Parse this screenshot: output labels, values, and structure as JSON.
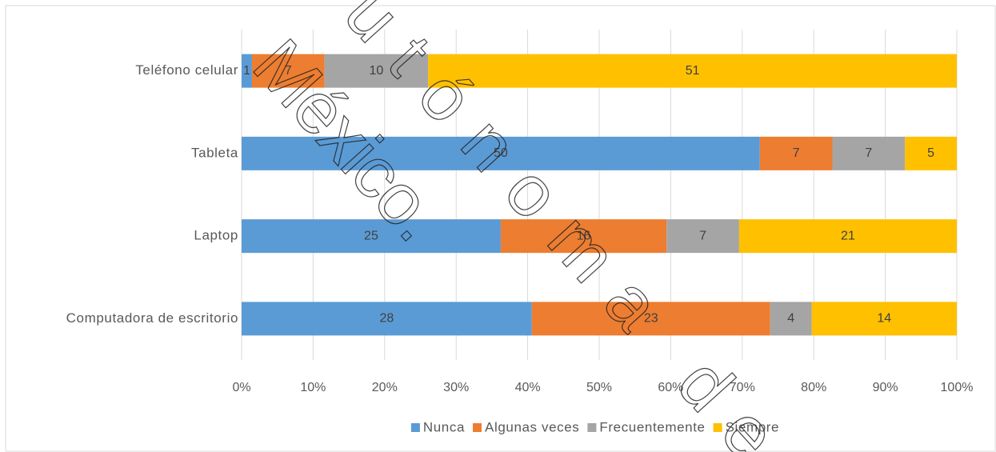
{
  "chart_data": {
    "type": "bar",
    "orientation": "horizontal",
    "stacking": "percent",
    "categories": [
      "Teléfono celular",
      "Tableta",
      "Laptop",
      "Computadora de escritorio"
    ],
    "series": [
      {
        "name": "Nunca",
        "color": "#5b9bd5",
        "values": [
          1,
          50,
          25,
          28
        ]
      },
      {
        "name": "Algunas veces",
        "color": "#ed7d31",
        "values": [
          7,
          7,
          16,
          23
        ]
      },
      {
        "name": "Frecuentemente",
        "color": "#a5a5a5",
        "values": [
          10,
          7,
          7,
          4
        ]
      },
      {
        "name": "Siempre",
        "color": "#ffc000",
        "values": [
          51,
          5,
          21,
          14
        ]
      }
    ],
    "xlim": [
      0,
      100
    ],
    "xticks": [
      {
        "value": 0,
        "label": "0%"
      },
      {
        "value": 10,
        "label": "10%"
      },
      {
        "value": 20,
        "label": "20%"
      },
      {
        "value": 30,
        "label": "30%"
      },
      {
        "value": 40,
        "label": "40%"
      },
      {
        "value": 50,
        "label": "50%"
      },
      {
        "value": 60,
        "label": "60%"
      },
      {
        "value": 70,
        "label": "70%"
      },
      {
        "value": 80,
        "label": "80%"
      },
      {
        "value": 90,
        "label": "90%"
      },
      {
        "value": 100,
        "label": "100%"
      }
    ],
    "grid": true,
    "legend": "bottom",
    "watermark": [
      "Z Autónoma de",
      "México."
    ]
  }
}
